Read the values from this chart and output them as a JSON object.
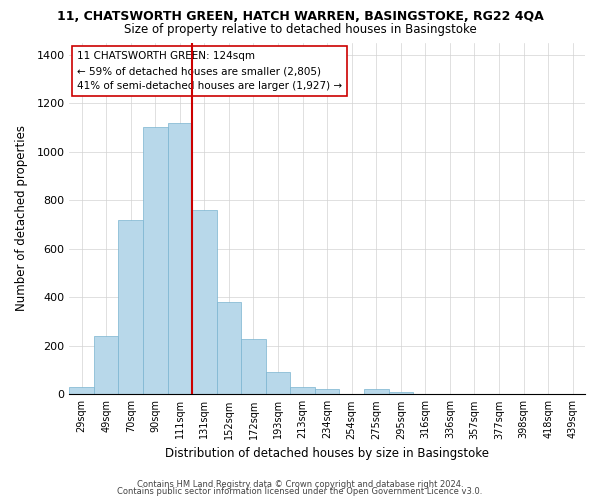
{
  "title_line1": "11, CHATSWORTH GREEN, HATCH WARREN, BASINGSTOKE, RG22 4QA",
  "title_line2": "Size of property relative to detached houses in Basingstoke",
  "xlabel": "Distribution of detached houses by size in Basingstoke",
  "ylabel": "Number of detached properties",
  "bin_labels": [
    "29sqm",
    "49sqm",
    "70sqm",
    "90sqm",
    "111sqm",
    "131sqm",
    "152sqm",
    "172sqm",
    "193sqm",
    "213sqm",
    "234sqm",
    "254sqm",
    "275sqm",
    "295sqm",
    "316sqm",
    "336sqm",
    "357sqm",
    "377sqm",
    "398sqm",
    "418sqm",
    "439sqm"
  ],
  "bar_values": [
    30,
    240,
    720,
    1100,
    1120,
    760,
    380,
    230,
    90,
    30,
    20,
    0,
    20,
    10,
    0,
    0,
    0,
    0,
    0,
    0,
    0
  ],
  "bar_color": "#b8d8ea",
  "bar_edge_color": "#7ab4d0",
  "highlight_color": "#cc0000",
  "vline_position": 4.5,
  "annotation_title": "11 CHATSWORTH GREEN: 124sqm",
  "annotation_line1": "← 59% of detached houses are smaller (2,805)",
  "annotation_line2": "41% of semi-detached houses are larger (1,927) →",
  "ylim": [
    0,
    1450
  ],
  "yticks": [
    0,
    200,
    400,
    600,
    800,
    1000,
    1200,
    1400
  ],
  "footer_line1": "Contains HM Land Registry data © Crown copyright and database right 2024.",
  "footer_line2": "Contains public sector information licensed under the Open Government Licence v3.0."
}
